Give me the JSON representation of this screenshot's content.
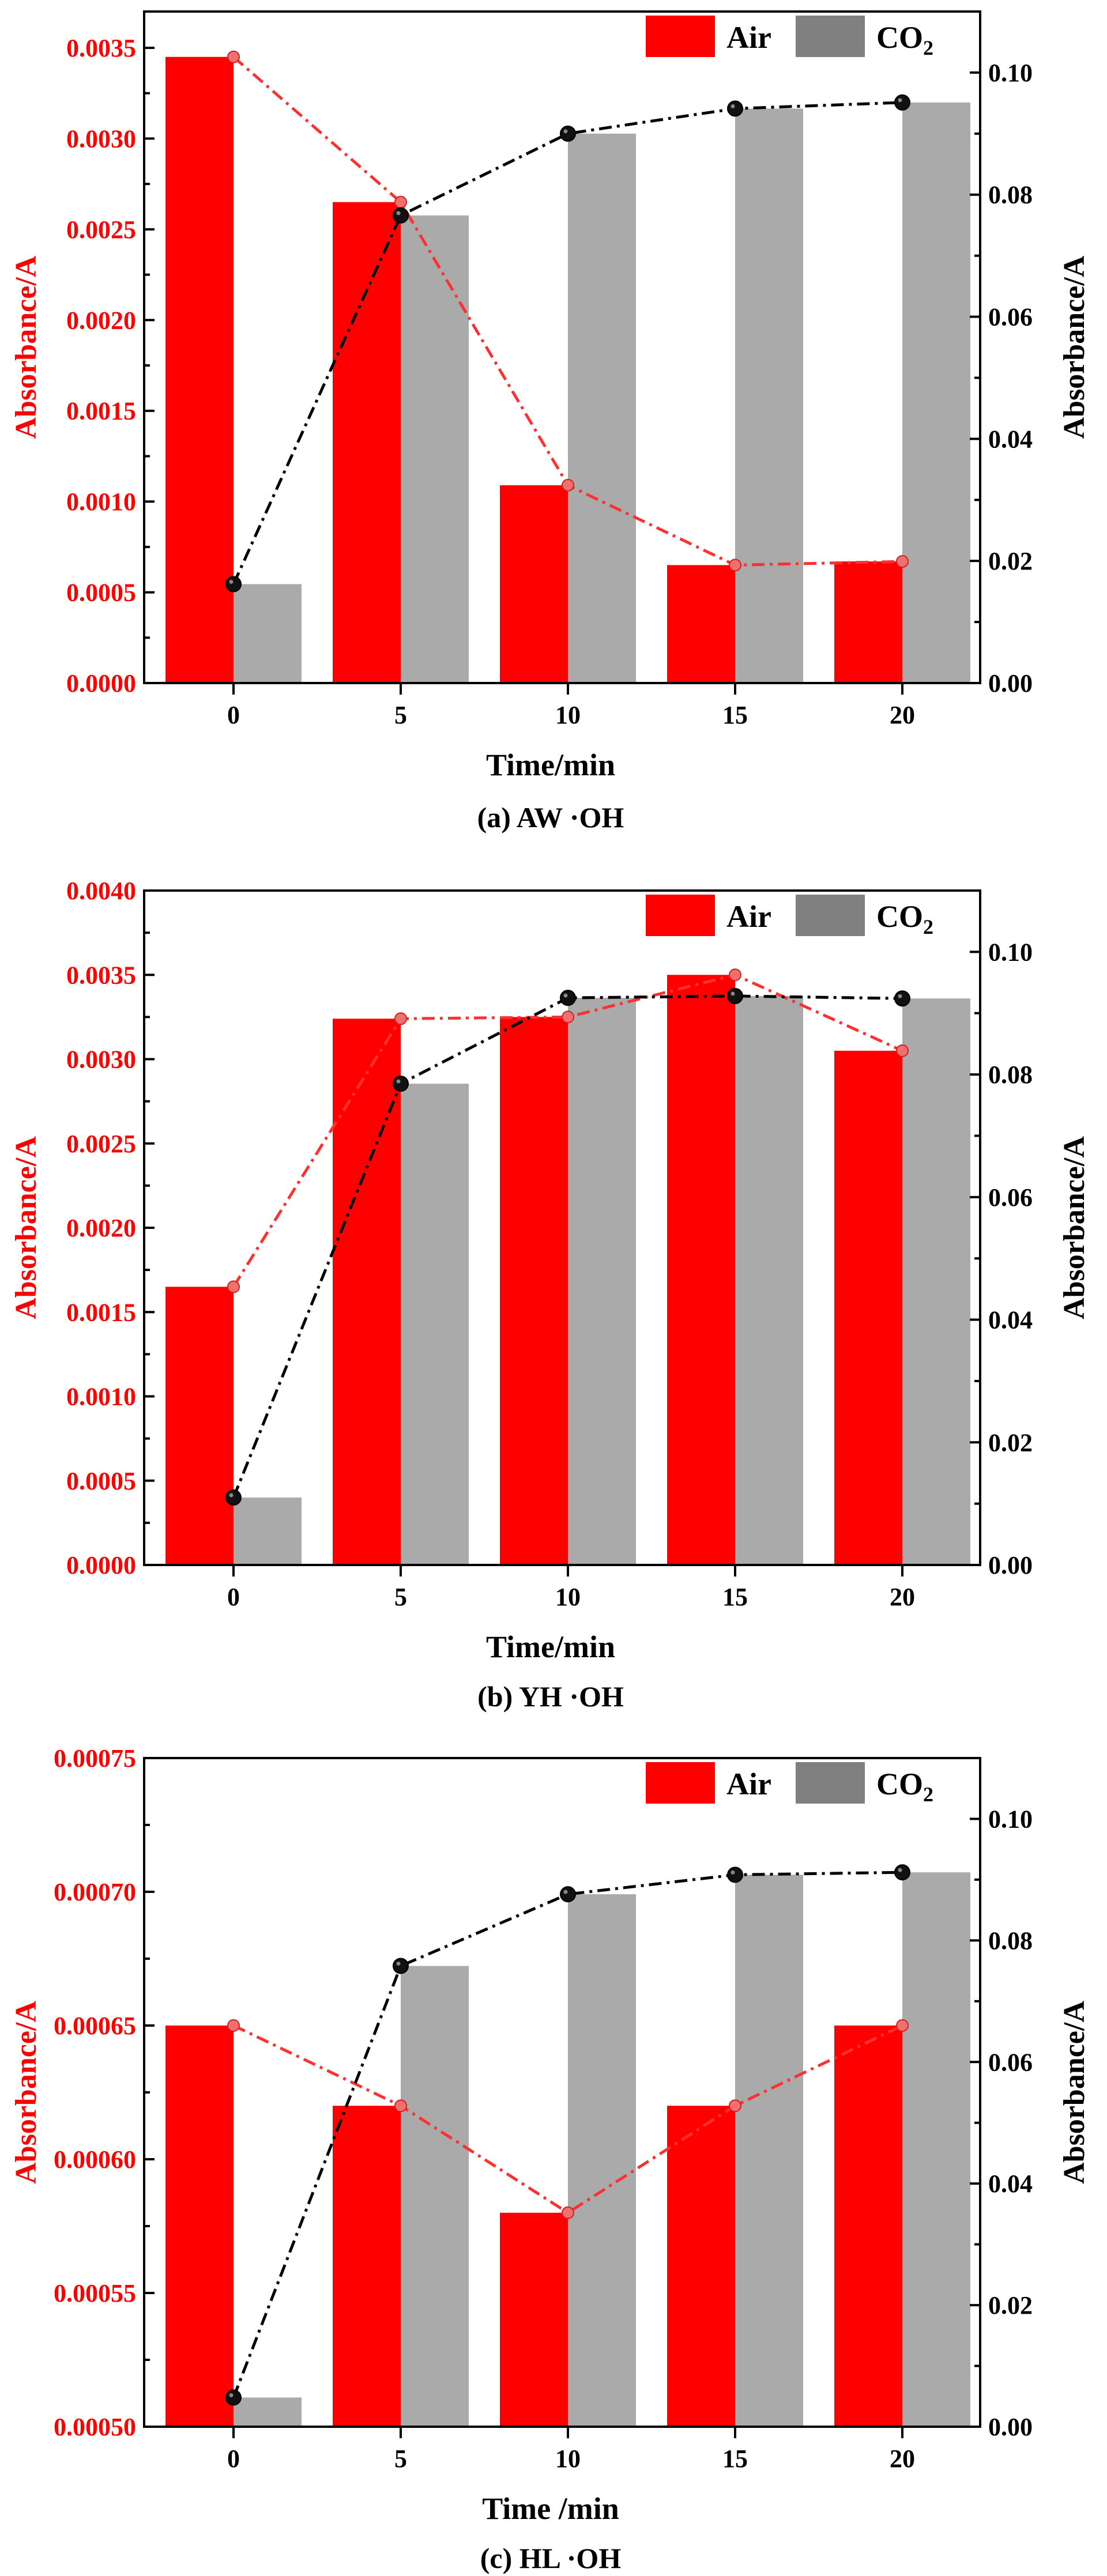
{
  "colors": {
    "air": "#ff0000",
    "co2": "#aaaaaa",
    "co2_legend": "#808080",
    "co2_line": "#000000",
    "air_line": "#ff3030"
  },
  "chart_data": [
    {
      "type": "bar",
      "caption": "(a) AW ·OH",
      "xlabel": "Time/min",
      "ylabel_left": "Absorbance/A",
      "ylabel_right": "Absorbance/A",
      "categories": [
        "0",
        "5",
        "10",
        "15",
        "20"
      ],
      "legend": {
        "air": "Air",
        "co2_base": "CO",
        "co2_sub": "2",
        "position": "top-right"
      },
      "left_ylim": [
        0,
        0.0037
      ],
      "left_ticks": [
        "0.0000",
        "0.0005",
        "0.0010",
        "0.0015",
        "0.0020",
        "0.0025",
        "0.0030",
        "0.0035"
      ],
      "right_ylim": [
        0,
        0.11
      ],
      "right_ticks": [
        "0.00",
        "0.02",
        "0.04",
        "0.06",
        "0.08",
        "0.10"
      ],
      "series": [
        {
          "name": "Air",
          "axis": "left",
          "values": [
            0.00345,
            0.00265,
            0.00109,
            0.00065,
            0.00067
          ]
        },
        {
          "name": "CO2",
          "axis": "right",
          "values": [
            0.0162,
            0.0766,
            0.09,
            0.0941,
            0.0951
          ]
        }
      ]
    },
    {
      "type": "bar",
      "caption": "(b) YH ·OH",
      "xlabel": "Time/min",
      "ylabel_left": "Absorbance/A",
      "ylabel_right": "Absorbance/A",
      "categories": [
        "0",
        "5",
        "10",
        "15",
        "20"
      ],
      "legend": {
        "air": "Air",
        "co2_base": "CO",
        "co2_sub": "2",
        "position": "top-right"
      },
      "left_ylim": [
        0,
        0.004
      ],
      "left_ticks": [
        "0.0000",
        "0.0005",
        "0.0010",
        "0.0015",
        "0.0020",
        "0.0025",
        "0.0030",
        "0.0035",
        "0.0040"
      ],
      "right_ylim": [
        0,
        0.11
      ],
      "right_ticks": [
        "0.00",
        "0.02",
        "0.04",
        "0.06",
        "0.08",
        "0.10"
      ],
      "series": [
        {
          "name": "Air",
          "axis": "left",
          "values": [
            0.00165,
            0.00324,
            0.00325,
            0.0035,
            0.00305
          ]
        },
        {
          "name": "CO2",
          "axis": "right",
          "values": [
            0.011,
            0.0785,
            0.0925,
            0.0928,
            0.0924
          ]
        }
      ]
    },
    {
      "type": "bar",
      "caption": "(c) HL  ·OH",
      "xlabel": "Time /min",
      "ylabel_left": "Absorbance/A",
      "ylabel_right": "Absorbance/A",
      "categories": [
        "0",
        "5",
        "10",
        "15",
        "20"
      ],
      "legend": {
        "air": "Air",
        "co2_base": "CO",
        "co2_sub": "2",
        "position": "top-right"
      },
      "left_ylim": [
        0.0005,
        0.00075
      ],
      "left_ticks": [
        "0.00050",
        "0.00055",
        "0.00060",
        "0.00065",
        "0.00070",
        "0.00075"
      ],
      "right_ylim": [
        0,
        0.11
      ],
      "right_ticks": [
        "0.00",
        "0.02",
        "0.04",
        "0.06",
        "0.08",
        "0.10"
      ],
      "series": [
        {
          "name": "Air",
          "axis": "left",
          "values": [
            0.00065,
            0.00062,
            0.00058,
            0.00062,
            0.00065
          ]
        },
        {
          "name": "CO2",
          "axis": "right",
          "values": [
            0.0048,
            0.0758,
            0.0876,
            0.0908,
            0.0912
          ]
        }
      ]
    }
  ]
}
